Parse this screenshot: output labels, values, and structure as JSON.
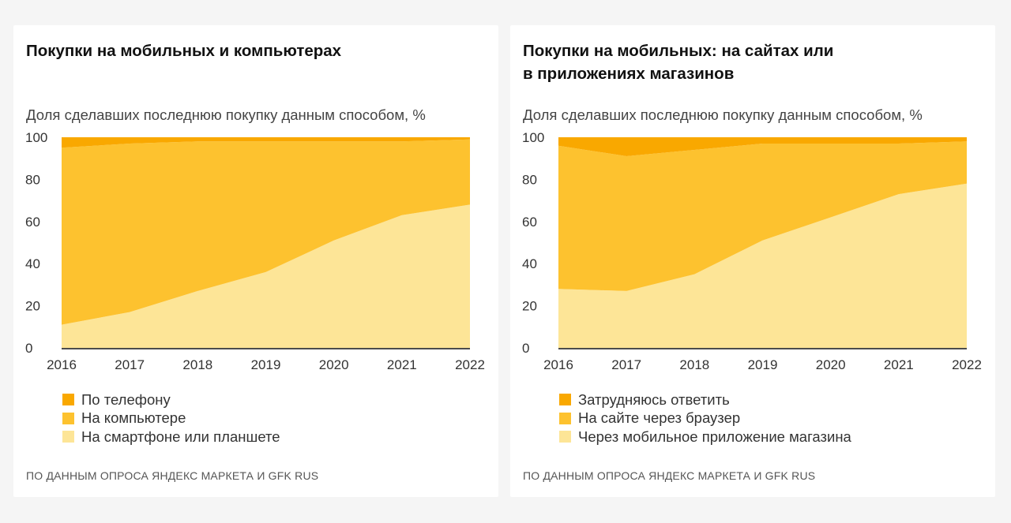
{
  "colors": {
    "top": "#f9a800",
    "middle": "#fdc22f",
    "bottom": "#fde597",
    "baseline": "#111111"
  },
  "chart_data": [
    {
      "type": "area",
      "stacked": true,
      "title": "Покупки на мобильных и компьютерах",
      "subtitle": "Доля сделавших последнюю покупку данным способом, %",
      "xlabel": "",
      "ylabel": "",
      "x": [
        "2016",
        "2017",
        "2018",
        "2019",
        "2020",
        "2021",
        "2022"
      ],
      "ylim": [
        0,
        100
      ],
      "yticks": [
        "0",
        "20",
        "40",
        "60",
        "80",
        "100"
      ],
      "grid": false,
      "legend_position": "bottom-left",
      "series": [
        {
          "name": "На смартфоне или планшете",
          "color_key": "bottom",
          "values": [
            11,
            17,
            27,
            36,
            51,
            63,
            68
          ]
        },
        {
          "name": "На компьютере",
          "color_key": "middle",
          "values": [
            84,
            80,
            71,
            62,
            47,
            35,
            31
          ]
        },
        {
          "name": "По телефону",
          "color_key": "top",
          "values": [
            5,
            3,
            2,
            2,
            2,
            2,
            1
          ]
        }
      ],
      "legend": [
        {
          "label": "По телефону",
          "color_key": "top"
        },
        {
          "label": "На компьютере",
          "color_key": "middle"
        },
        {
          "label": "На смартфоне или планшете",
          "color_key": "bottom"
        }
      ],
      "source": "ПО ДАННЫМ ОПРОСА ЯНДЕКС МАРКЕТА И GFK RUS"
    },
    {
      "type": "area",
      "stacked": true,
      "title": "Покупки на мобильных: на сайтах или в приложениях магазинов",
      "title_lines": [
        "Покупки на мобильных: на сайтах или",
        "в приложениях магазинов"
      ],
      "subtitle": "Доля сделавших последнюю покупку данным способом, %",
      "xlabel": "",
      "ylabel": "",
      "x": [
        "2016",
        "2017",
        "2018",
        "2019",
        "2020",
        "2021",
        "2022"
      ],
      "ylim": [
        0,
        100
      ],
      "yticks": [
        "0",
        "20",
        "40",
        "60",
        "80",
        "100"
      ],
      "grid": false,
      "legend_position": "bottom-left",
      "series": [
        {
          "name": "Через мобильное приложение магазина",
          "color_key": "bottom",
          "values": [
            28,
            27,
            35,
            51,
            62,
            73,
            78
          ]
        },
        {
          "name": "На сайте через браузер",
          "color_key": "middle",
          "values": [
            68,
            64,
            59,
            46,
            35,
            24,
            20
          ]
        },
        {
          "name": "Затрудняюсь ответить",
          "color_key": "top",
          "values": [
            4,
            9,
            6,
            3,
            3,
            3,
            2
          ]
        }
      ],
      "legend": [
        {
          "label": "Затрудняюсь ответить",
          "color_key": "top"
        },
        {
          "label": "На сайте через браузер",
          "color_key": "middle"
        },
        {
          "label": "Через мобильное приложение магазина",
          "color_key": "bottom"
        }
      ],
      "source": "ПО ДАННЫМ ОПРОСА ЯНДЕКС МАРКЕТА И GFK RUS"
    }
  ]
}
